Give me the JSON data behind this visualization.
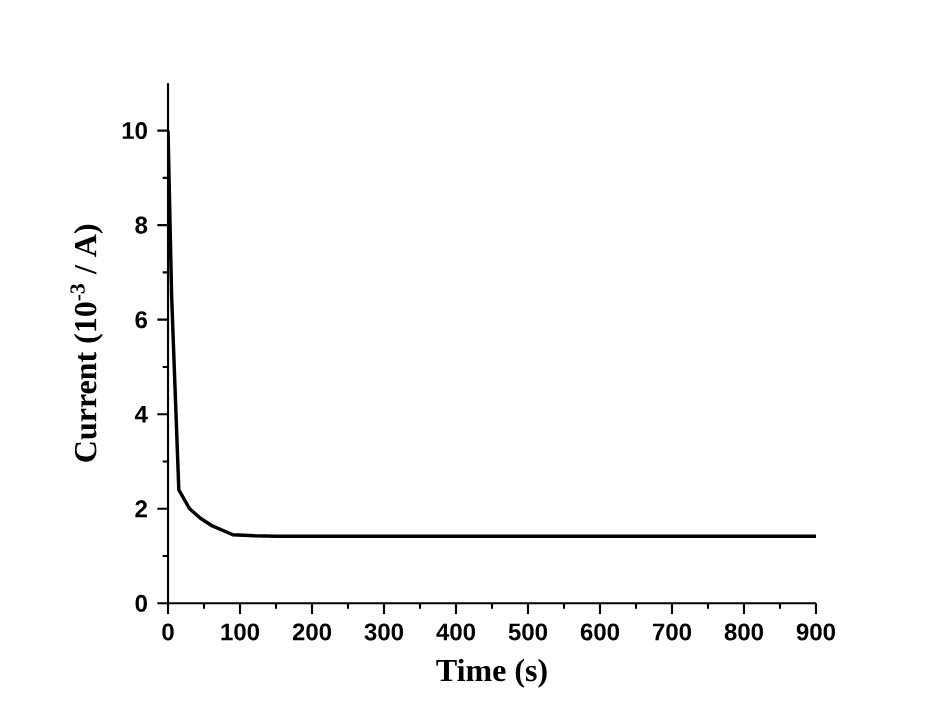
{
  "chart_data": {
    "type": "line",
    "xlabel": "Time (s)",
    "ylabel": "Current (10$^{-3}$ / A)",
    "x": [
      0,
      5,
      15,
      30,
      45,
      60,
      75,
      90,
      120,
      150,
      300,
      500,
      700,
      900
    ],
    "series": [
      {
        "color": "#000000",
        "values": [
          10.0,
          6.5,
          2.4,
          2.0,
          1.8,
          1.65,
          1.55,
          1.45,
          1.43,
          1.42,
          1.42,
          1.42,
          1.42,
          1.42
        ]
      }
    ],
    "xlim": [
      0,
      900
    ],
    "ylim": [
      0,
      11
    ],
    "xticks": [
      0,
      100,
      200,
      300,
      400,
      500,
      600,
      700,
      800,
      900
    ],
    "yticks": [
      0,
      2,
      4,
      6,
      8,
      10
    ],
    "marker": "none",
    "line_style": "solid"
  }
}
